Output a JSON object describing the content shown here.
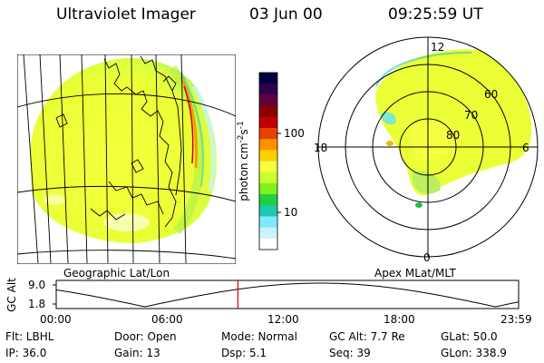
{
  "header": {
    "instrument": "Ultraviolet Imager",
    "date": "03 Jun 00",
    "time": "09:25:59 UT"
  },
  "colorbar": {
    "unit": "photon cm",
    "unit_exp1": "-2",
    "unit_mid": "s",
    "unit_exp2": "-1",
    "ticks": [
      "100",
      "10"
    ],
    "colors": [
      "#000040",
      "#300050",
      "#600040",
      "#8b0000",
      "#c00000",
      "#e84000",
      "#ff9000",
      "#ffd000",
      "#f6ff40",
      "#c8ff30",
      "#7ff020",
      "#20d040",
      "#20c8b0",
      "#80e8ff",
      "#c8f4ff",
      "#ffffff"
    ]
  },
  "panels": {
    "left_label": "Geographic Lat/Lon",
    "right_label": "Apex MLat/MLT"
  },
  "polar": {
    "mlt_labels": {
      "top": "12",
      "left": "18",
      "right": "6",
      "bottom": "0"
    },
    "lat_labels": [
      "60",
      "70",
      "80"
    ]
  },
  "altitude_plot": {
    "ylabel": "GC Alt",
    "yticks": [
      "9.0",
      "1.8"
    ],
    "xticks": [
      "00:00",
      "06:00",
      "12:00",
      "18:00",
      "23:59"
    ],
    "current_time_hours": 9.43
  },
  "info": {
    "row1": {
      "flt": "Flt: LBHL",
      "door": "Door: Open",
      "mode": "Mode: Normal",
      "gcalt": "GC Alt: 7.7 Re",
      "glat": "GLat:  50.0"
    },
    "row2": {
      "ip": "IP: 36.0",
      "gain": "Gain: 13",
      "dsp": "Dsp:     5.1",
      "seq": "Seq: 39",
      "glon": "GLon: 338.9"
    }
  }
}
